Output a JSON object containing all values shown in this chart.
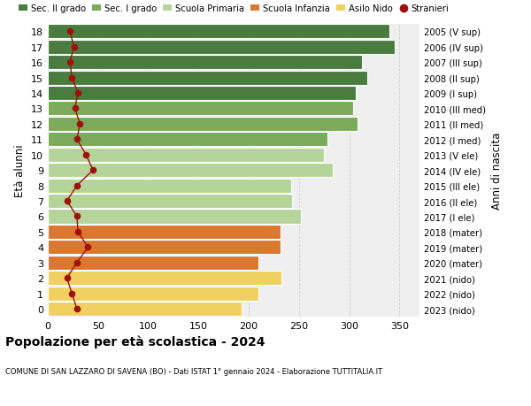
{
  "ages": [
    18,
    17,
    16,
    15,
    14,
    13,
    12,
    11,
    10,
    9,
    8,
    7,
    6,
    5,
    4,
    3,
    2,
    1,
    0
  ],
  "right_labels": [
    "2005 (V sup)",
    "2006 (IV sup)",
    "2007 (III sup)",
    "2008 (II sup)",
    "2009 (I sup)",
    "2010 (III med)",
    "2011 (II med)",
    "2012 (I med)",
    "2013 (V ele)",
    "2014 (IV ele)",
    "2015 (III ele)",
    "2016 (II ele)",
    "2017 (I ele)",
    "2018 (mater)",
    "2019 (mater)",
    "2020 (mater)",
    "2021 (nido)",
    "2022 (nido)",
    "2023 (nido)"
  ],
  "bar_values": [
    340,
    345,
    313,
    318,
    307,
    304,
    308,
    278,
    275,
    284,
    242,
    243,
    252,
    232,
    232,
    210,
    233,
    210,
    193
  ],
  "stranieri_values": [
    22,
    26,
    22,
    24,
    30,
    27,
    32,
    29,
    38,
    45,
    29,
    19,
    29,
    30,
    40,
    29,
    19,
    24,
    29
  ],
  "bar_colors": [
    "#4a7c3f",
    "#4a7c3f",
    "#4a7c3f",
    "#4a7c3f",
    "#4a7c3f",
    "#7aaa5a",
    "#7aaa5a",
    "#7aaa5a",
    "#b5d49a",
    "#b5d49a",
    "#b5d49a",
    "#b5d49a",
    "#b5d49a",
    "#d97830",
    "#d97830",
    "#d97830",
    "#f0d060",
    "#f0d060",
    "#f0d060"
  ],
  "legend_labels": [
    "Sec. II grado",
    "Sec. I grado",
    "Scuola Primaria",
    "Scuola Infanzia",
    "Asilo Nido",
    "Stranieri"
  ],
  "legend_colors": [
    "#4a7c3f",
    "#7aaa5a",
    "#b5d49a",
    "#d97830",
    "#f0d060",
    "#a01010"
  ],
  "stranieri_color": "#a01010",
  "ylabel_left": "Età alunni",
  "ylabel_right": "Anni di nascita",
  "title": "Popolazione per età scolastica - 2024",
  "subtitle": "COMUNE DI SAN LAZZARO DI SAVENA (BO) - Dati ISTAT 1° gennaio 2024 - Elaborazione TUTTITALIA.IT",
  "xlim": [
    0,
    370
  ],
  "xticks": [
    0,
    50,
    100,
    150,
    200,
    250,
    300,
    350
  ],
  "background_color": "#ffffff",
  "bar_background": "#efefef"
}
